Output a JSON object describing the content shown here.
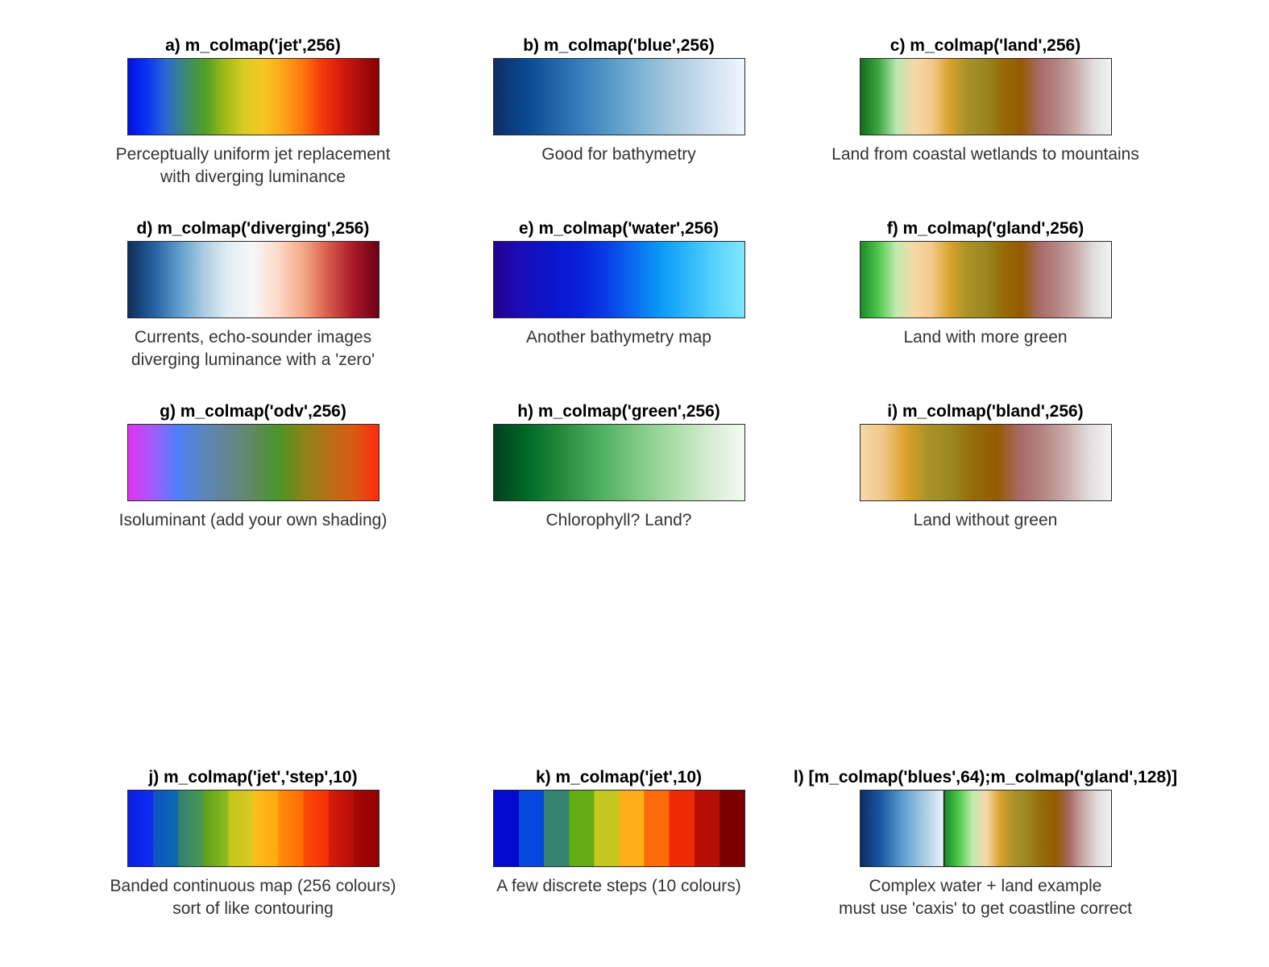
{
  "panels": [
    {
      "title": "a) m_colmap('jet',256)",
      "caption": [
        "Perceptually uniform jet replacement",
        "with diverging luminance"
      ],
      "mode": "smooth",
      "colors": [
        "#0010e0",
        "#0a33f5",
        "#2b6ad0",
        "#3c8a70",
        "#4f9f26",
        "#9dba18",
        "#d8cb22",
        "#f6c722",
        "#fda81a",
        "#fe7a0e",
        "#f63c0a",
        "#d71c0c",
        "#ae0e0a",
        "#880000"
      ]
    },
    {
      "title": "b) m_colmap('blue',256)",
      "caption": [
        "Good for bathymetry"
      ],
      "mode": "smooth",
      "colors": [
        "#0c2d66",
        "#0b4c94",
        "#2a6fb2",
        "#4b92c5",
        "#78b0d4",
        "#a8cadf",
        "#cedff0",
        "#f0f6fd"
      ]
    },
    {
      "title": "c) m_colmap('land',256)",
      "caption": [
        "Land from coastal wetlands to mountains"
      ],
      "mode": "smooth",
      "colors": [
        "#126c1e",
        "#3ca640",
        "#b9e8b0",
        "#f6d8a8",
        "#f3c98c",
        "#d8a02a",
        "#a79026",
        "#9b8520",
        "#946a06",
        "#955a00",
        "#a86a68",
        "#b58584",
        "#c9aaa8",
        "#e0dcdc",
        "#f2f2f2"
      ]
    },
    {
      "title": "d) m_colmap('diverging',256)",
      "caption": [
        "Currents, echo-sounder images",
        "diverging luminance with a 'zero'"
      ],
      "mode": "smooth",
      "colors": [
        "#0e2e5c",
        "#245e9e",
        "#5d9bcb",
        "#aacbe0",
        "#e2eef4",
        "#f7f7f7",
        "#fdd9c8",
        "#f3a886",
        "#d65b4a",
        "#a81928",
        "#6b0018"
      ]
    },
    {
      "title": "e) m_colmap('water',256)",
      "caption": [
        "Another bathymetry map"
      ],
      "mode": "smooth",
      "colors": [
        "#23008f",
        "#1c0cb8",
        "#0a15cc",
        "#0a1dd8",
        "#0a3ae6",
        "#0a6af2",
        "#0b9af8",
        "#2fb8fb",
        "#5ad4fd",
        "#7fe8ff"
      ]
    },
    {
      "title": "f) m_colmap('gland',256)",
      "caption": [
        "Land with more green"
      ],
      "mode": "smooth",
      "colors": [
        "#1d8a2a",
        "#4ec84a",
        "#c2ebb0",
        "#f7d9a8",
        "#f2c98a",
        "#d9a12c",
        "#a99227",
        "#9b8620",
        "#946b06",
        "#955a00",
        "#a86a68",
        "#b58584",
        "#c9aaa8",
        "#e0dcdc",
        "#f2f2f2"
      ]
    },
    {
      "title": "g) m_colmap('odv',256)",
      "caption": [
        "Isoluminant (add your own shading)"
      ],
      "mode": "smooth",
      "colors": [
        "#e232f2",
        "#a45cfc",
        "#4c80f8",
        "#5a86bc",
        "#658592",
        "#5d8a60",
        "#4a9526",
        "#8a8418",
        "#b47014",
        "#d95a12",
        "#ff2a10"
      ]
    },
    {
      "title": "h) m_colmap('green',256)",
      "caption": [
        "Chlorophyll? Land?"
      ],
      "mode": "smooth",
      "colors": [
        "#00401e",
        "#006c28",
        "#2a8e3e",
        "#4fb060",
        "#7ec984",
        "#aadda8",
        "#d4ecd0",
        "#f4faf2"
      ]
    },
    {
      "title": "i) m_colmap('bland',256)",
      "caption": [
        "Land without green"
      ],
      "mode": "smooth",
      "colors": [
        "#f6d8a8",
        "#f0c789",
        "#daa12a",
        "#a99227",
        "#9b8620",
        "#946b06",
        "#955a00",
        "#a86a68",
        "#b58584",
        "#c9aaa8",
        "#e0dcdc",
        "#f4f4f4"
      ]
    },
    {
      "title": "j) m_colmap('jet','step',10)",
      "caption": [
        "Banded continuous map (256 colours)",
        "sort of like contouring"
      ],
      "mode": "banded",
      "colors": [
        [
          "#0a1de6",
          "#0f2ef2"
        ],
        [
          "#0f52c0",
          "#0a6ab0"
        ],
        [
          "#2f7f74",
          "#4d9a50"
        ],
        [
          "#5a9e18",
          "#8fbf20"
        ],
        [
          "#c4c61c",
          "#dcc824"
        ],
        [
          "#ffbe1a",
          "#ffa812"
        ],
        [
          "#ff8e08",
          "#ff6c04"
        ],
        [
          "#ff4a06",
          "#f42e08"
        ],
        [
          "#d81c0a",
          "#b80c0a"
        ],
        [
          "#a80808",
          "#900000"
        ]
      ]
    },
    {
      "title": "k) m_colmap('jet',10)",
      "caption": [
        "A few discrete steps (10 colours)"
      ],
      "mode": "steps",
      "colors": [
        "#0409d0",
        "#0648de",
        "#348470",
        "#63ad14",
        "#c5c71f",
        "#fdae18",
        "#fd6c0b",
        "#ef2b06",
        "#b70f06",
        "#7d0000"
      ]
    },
    {
      "title": "l) [m_colmap('blues',64);m_colmap('gland',128)]",
      "caption": [
        "Complex water + land example",
        "must use 'caxis' to get coastline correct"
      ],
      "mode": "split",
      "split": 0.333,
      "colors": [
        "#0c2d66",
        "#1a5aa4",
        "#5a9ccd",
        "#a2c8e2",
        "#eaf3fb"
      ],
      "colors2": [
        "#1d8a2a",
        "#4ec84a",
        "#c2ebb0",
        "#f7d9a8",
        "#d9a12c",
        "#a99227",
        "#9b8620",
        "#946b06",
        "#955a00",
        "#a86a68",
        "#c9aaa8",
        "#e0dcdc",
        "#f2f2f2"
      ]
    }
  ]
}
